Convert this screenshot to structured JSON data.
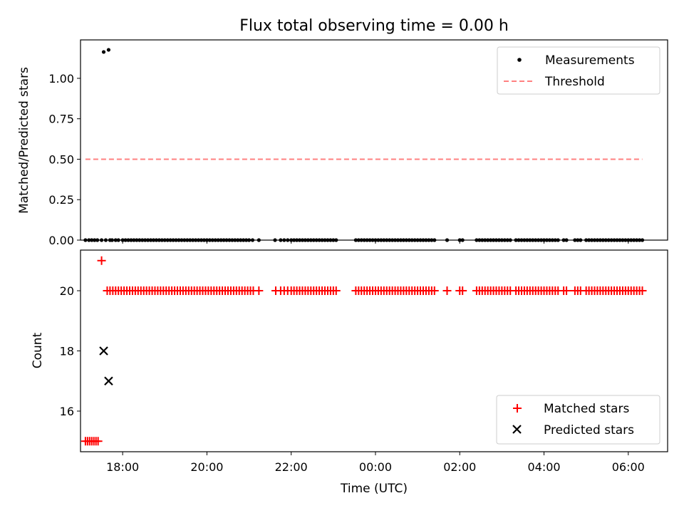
{
  "chart_data": [
    {
      "type": "scatter",
      "title": "Flux total observing time = 0.00 h",
      "xlabel": "",
      "ylabel": "Matched/Predicted stars",
      "x_range": [
        "17:00",
        "06:56"
      ],
      "ylim": [
        0,
        1.2375
      ],
      "yticks": [
        "0.00",
        "0.25",
        "0.50",
        "0.75",
        "1.00"
      ],
      "grid": false,
      "legend_position": "top-right",
      "legend": [
        "Measurements",
        "Threshold"
      ],
      "series": [
        {
          "name": "Measurements",
          "style": "black dots",
          "points": [
            [
              "17:33",
              1.163
            ],
            [
              "17:40",
              1.176
            ]
          ],
          "zero_value_times": [
            "17:07",
            "17:12",
            "17:16",
            "17:20",
            "17:24",
            "17:30",
            "17:36",
            "17:42",
            "17:45",
            "17:50",
            "17:54",
            "18:00",
            "18:04",
            "18:08",
            "18:12",
            "18:16",
            "18:20",
            "18:24",
            "18:28",
            "18:32",
            "18:36",
            "18:40",
            "18:44",
            "18:48",
            "18:52",
            "18:56",
            "19:00",
            "19:04",
            "19:08",
            "19:12",
            "19:16",
            "19:20",
            "19:24",
            "19:28",
            "19:32",
            "19:36",
            "19:40",
            "19:44",
            "19:48",
            "19:52",
            "19:56",
            "20:00",
            "20:04",
            "20:08",
            "20:12",
            "20:16",
            "20:20",
            "20:24",
            "20:28",
            "20:32",
            "20:36",
            "20:40",
            "20:44",
            "20:48",
            "20:52",
            "20:56",
            "21:00",
            "21:05",
            "21:14",
            "21:37",
            "21:45",
            "21:50",
            "21:55",
            "22:00",
            "22:04",
            "22:08",
            "22:12",
            "22:16",
            "22:20",
            "22:24",
            "22:28",
            "22:32",
            "22:36",
            "22:40",
            "22:44",
            "22:48",
            "22:52",
            "22:56",
            "23:00",
            "23:04",
            "23:32",
            "23:36",
            "23:40",
            "23:44",
            "23:48",
            "23:52",
            "23:56",
            "00:00",
            "00:04",
            "00:08",
            "00:12",
            "00:16",
            "00:20",
            "00:24",
            "00:28",
            "00:32",
            "00:36",
            "00:40",
            "00:44",
            "00:48",
            "00:52",
            "00:56",
            "01:00",
            "01:04",
            "01:08",
            "01:12",
            "01:16",
            "01:20",
            "01:24",
            "01:42",
            "02:00",
            "02:04",
            "02:24",
            "02:28",
            "02:32",
            "02:36",
            "02:40",
            "02:44",
            "02:48",
            "02:52",
            "02:56",
            "03:00",
            "03:04",
            "03:08",
            "03:12",
            "03:20",
            "03:24",
            "03:28",
            "03:32",
            "03:36",
            "03:40",
            "03:44",
            "03:48",
            "03:52",
            "03:56",
            "04:00",
            "04:04",
            "04:08",
            "04:12",
            "04:16",
            "04:20",
            "04:28",
            "04:32",
            "04:44",
            "04:48",
            "04:52",
            "05:00",
            "05:04",
            "05:08",
            "05:12",
            "05:16",
            "05:20",
            "05:24",
            "05:28",
            "05:32",
            "05:36",
            "05:40",
            "05:44",
            "05:48",
            "05:52",
            "05:56",
            "06:00",
            "06:04",
            "06:08",
            "06:12",
            "06:16",
            "06:20"
          ]
        },
        {
          "name": "Threshold",
          "style": "dashed",
          "color": "#ff8080",
          "x_range": [
            "17:07",
            "06:20"
          ],
          "y": 0.5
        }
      ]
    },
    {
      "type": "scatter",
      "xlabel": "Time (UTC)",
      "ylabel": "Count",
      "x_range": [
        "17:00",
        "06:56"
      ],
      "ylim": [
        14.65,
        21.35
      ],
      "yticks": [
        "16",
        "18",
        "20"
      ],
      "xticks": [
        "18:00",
        "20:00",
        "22:00",
        "00:00",
        "02:00",
        "04:00",
        "06:00"
      ],
      "grid": false,
      "legend_position": "bottom-right",
      "legend": [
        "Matched stars",
        "Predicted stars"
      ],
      "series": [
        {
          "name": "Matched stars",
          "marker": "+",
          "color": "#ff0000",
          "points": [
            [
              "17:07",
              15
            ],
            [
              "17:10",
              15
            ],
            [
              "17:13",
              15
            ],
            [
              "17:16",
              15
            ],
            [
              "17:19",
              15
            ],
            [
              "17:22",
              15
            ],
            [
              "17:25",
              15
            ],
            [
              "17:30",
              21
            ],
            [
              "17:38",
              20
            ],
            [
              "17:42",
              20
            ],
            [
              "17:46",
              20
            ],
            [
              "17:50",
              20
            ],
            [
              "17:54",
              20
            ],
            [
              "17:58",
              20
            ],
            [
              "18:02",
              20
            ],
            [
              "18:06",
              20
            ],
            [
              "18:10",
              20
            ],
            [
              "18:14",
              20
            ],
            [
              "18:18",
              20
            ],
            [
              "18:22",
              20
            ],
            [
              "18:26",
              20
            ],
            [
              "18:30",
              20
            ],
            [
              "18:34",
              20
            ],
            [
              "18:38",
              20
            ],
            [
              "18:42",
              20
            ],
            [
              "18:46",
              20
            ],
            [
              "18:50",
              20
            ],
            [
              "18:54",
              20
            ],
            [
              "18:58",
              20
            ],
            [
              "19:02",
              20
            ],
            [
              "19:06",
              20
            ],
            [
              "19:10",
              20
            ],
            [
              "19:14",
              20
            ],
            [
              "19:18",
              20
            ],
            [
              "19:22",
              20
            ],
            [
              "19:26",
              20
            ],
            [
              "19:30",
              20
            ],
            [
              "19:34",
              20
            ],
            [
              "19:38",
              20
            ],
            [
              "19:42",
              20
            ],
            [
              "19:46",
              20
            ],
            [
              "19:50",
              20
            ],
            [
              "19:54",
              20
            ],
            [
              "19:58",
              20
            ],
            [
              "20:02",
              20
            ],
            [
              "20:06",
              20
            ],
            [
              "20:10",
              20
            ],
            [
              "20:14",
              20
            ],
            [
              "20:18",
              20
            ],
            [
              "20:22",
              20
            ],
            [
              "20:26",
              20
            ],
            [
              "20:30",
              20
            ],
            [
              "20:34",
              20
            ],
            [
              "20:38",
              20
            ],
            [
              "20:42",
              20
            ],
            [
              "20:46",
              20
            ],
            [
              "20:50",
              20
            ],
            [
              "20:54",
              20
            ],
            [
              "20:58",
              20
            ],
            [
              "21:02",
              20
            ],
            [
              "21:06",
              20
            ],
            [
              "21:14",
              20
            ],
            [
              "21:38",
              20
            ],
            [
              "21:45",
              20
            ],
            [
              "21:50",
              20
            ],
            [
              "21:55",
              20
            ],
            [
              "22:00",
              20
            ],
            [
              "22:04",
              20
            ],
            [
              "22:08",
              20
            ],
            [
              "22:12",
              20
            ],
            [
              "22:16",
              20
            ],
            [
              "22:20",
              20
            ],
            [
              "22:24",
              20
            ],
            [
              "22:28",
              20
            ],
            [
              "22:32",
              20
            ],
            [
              "22:36",
              20
            ],
            [
              "22:40",
              20
            ],
            [
              "22:44",
              20
            ],
            [
              "22:48",
              20
            ],
            [
              "22:52",
              20
            ],
            [
              "22:56",
              20
            ],
            [
              "23:00",
              20
            ],
            [
              "23:04",
              20
            ],
            [
              "23:32",
              20
            ],
            [
              "23:36",
              20
            ],
            [
              "23:40",
              20
            ],
            [
              "23:44",
              20
            ],
            [
              "23:48",
              20
            ],
            [
              "23:52",
              20
            ],
            [
              "23:56",
              20
            ],
            [
              "00:00",
              20
            ],
            [
              "00:04",
              20
            ],
            [
              "00:08",
              20
            ],
            [
              "00:12",
              20
            ],
            [
              "00:16",
              20
            ],
            [
              "00:20",
              20
            ],
            [
              "00:24",
              20
            ],
            [
              "00:28",
              20
            ],
            [
              "00:32",
              20
            ],
            [
              "00:36",
              20
            ],
            [
              "00:40",
              20
            ],
            [
              "00:44",
              20
            ],
            [
              "00:48",
              20
            ],
            [
              "00:52",
              20
            ],
            [
              "00:56",
              20
            ],
            [
              "01:00",
              20
            ],
            [
              "01:04",
              20
            ],
            [
              "01:08",
              20
            ],
            [
              "01:12",
              20
            ],
            [
              "01:16",
              20
            ],
            [
              "01:20",
              20
            ],
            [
              "01:24",
              20
            ],
            [
              "01:42",
              20
            ],
            [
              "02:00",
              20
            ],
            [
              "02:04",
              20
            ],
            [
              "02:24",
              20
            ],
            [
              "02:28",
              20
            ],
            [
              "02:32",
              20
            ],
            [
              "02:36",
              20
            ],
            [
              "02:40",
              20
            ],
            [
              "02:44",
              20
            ],
            [
              "02:48",
              20
            ],
            [
              "02:52",
              20
            ],
            [
              "02:56",
              20
            ],
            [
              "03:00",
              20
            ],
            [
              "03:04",
              20
            ],
            [
              "03:08",
              20
            ],
            [
              "03:12",
              20
            ],
            [
              "03:20",
              20
            ],
            [
              "03:24",
              20
            ],
            [
              "03:28",
              20
            ],
            [
              "03:32",
              20
            ],
            [
              "03:36",
              20
            ],
            [
              "03:40",
              20
            ],
            [
              "03:44",
              20
            ],
            [
              "03:48",
              20
            ],
            [
              "03:52",
              20
            ],
            [
              "03:56",
              20
            ],
            [
              "04:00",
              20
            ],
            [
              "04:04",
              20
            ],
            [
              "04:08",
              20
            ],
            [
              "04:12",
              20
            ],
            [
              "04:16",
              20
            ],
            [
              "04:20",
              20
            ],
            [
              "04:28",
              20
            ],
            [
              "04:32",
              20
            ],
            [
              "04:44",
              20
            ],
            [
              "04:48",
              20
            ],
            [
              "04:52",
              20
            ],
            [
              "05:00",
              20
            ],
            [
              "05:04",
              20
            ],
            [
              "05:08",
              20
            ],
            [
              "05:12",
              20
            ],
            [
              "05:16",
              20
            ],
            [
              "05:20",
              20
            ],
            [
              "05:24",
              20
            ],
            [
              "05:28",
              20
            ],
            [
              "05:32",
              20
            ],
            [
              "05:36",
              20
            ],
            [
              "05:40",
              20
            ],
            [
              "05:44",
              20
            ],
            [
              "05:48",
              20
            ],
            [
              "05:52",
              20
            ],
            [
              "05:56",
              20
            ],
            [
              "06:00",
              20
            ],
            [
              "06:04",
              20
            ],
            [
              "06:08",
              20
            ],
            [
              "06:12",
              20
            ],
            [
              "06:16",
              20
            ],
            [
              "06:20",
              20
            ]
          ]
        },
        {
          "name": "Predicted stars",
          "marker": "x",
          "color": "#000000",
          "points": [
            [
              "17:33",
              18
            ],
            [
              "17:40",
              17
            ]
          ]
        }
      ]
    }
  ]
}
